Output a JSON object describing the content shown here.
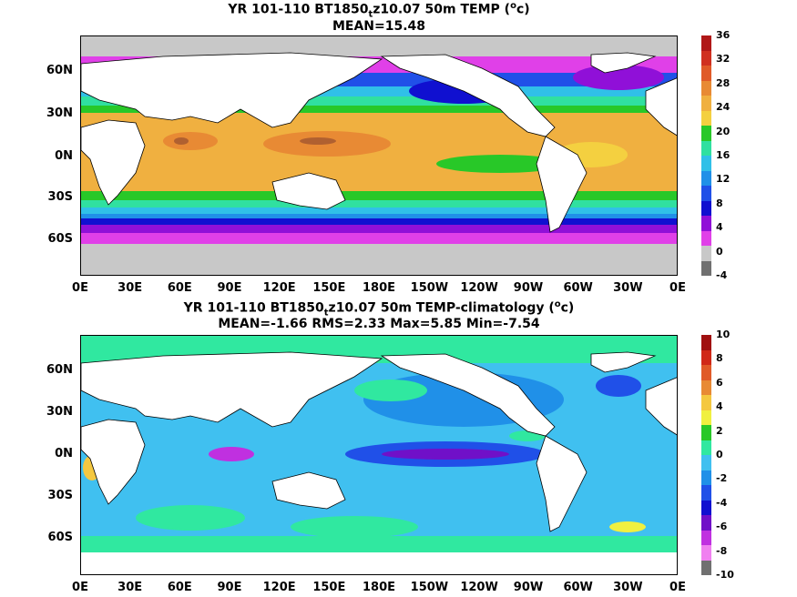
{
  "top": {
    "title_line1_a": "YR 101-110 BT1850",
    "title_line1_sub": "t",
    "title_line1_b": "z10.07 50m TEMP (",
    "title_line1_sup": "o",
    "title_line1_c": "c)",
    "title_line2": "MEAN=15.48",
    "colorbar_labels": [
      "36",
      "32",
      "28",
      "24",
      "20",
      "16",
      "12",
      "8",
      "4",
      "0",
      "-4"
    ],
    "colorbar_colors": [
      "#b01818",
      "#d03020",
      "#e05a28",
      "#e88a34",
      "#f0b040",
      "#f4d040",
      "#28c828",
      "#30e0a0",
      "#30c0e8",
      "#2090e8",
      "#2050e8",
      "#1010d0",
      "#9010d8",
      "#e040e8",
      "#c8c8c8",
      "#707070"
    ]
  },
  "bottom": {
    "title_line1_a": "YR 101-110 BT1850",
    "title_line1_sub": "t",
    "title_line1_b": "z10.07 50m TEMP-climatology (",
    "title_line1_sup": "o",
    "title_line1_c": "c)",
    "title_line2": "MEAN=-1.66   RMS=2.33   Max=5.85   Min=-7.54",
    "colorbar_labels": [
      "10",
      "8",
      "6",
      "4",
      "2",
      "0",
      "-2",
      "-4",
      "-6",
      "-8",
      "-10"
    ],
    "colorbar_colors": [
      "#a01010",
      "#d02818",
      "#e05a28",
      "#e88a34",
      "#f4c840",
      "#f0f040",
      "#28c828",
      "#30e8a0",
      "#40c0f0",
      "#2090e8",
      "#2050e8",
      "#1010d0",
      "#7010c8",
      "#c030e0",
      "#f080f0",
      "#707070"
    ]
  },
  "axes": {
    "lat_labels": [
      "60N",
      "30N",
      "0N",
      "30S",
      "60S"
    ],
    "lon_labels": [
      "0E",
      "30E",
      "60E",
      "90E",
      "120E",
      "150E",
      "180E",
      "150W",
      "120W",
      "90W",
      "60W",
      "30W",
      "0E"
    ]
  }
}
